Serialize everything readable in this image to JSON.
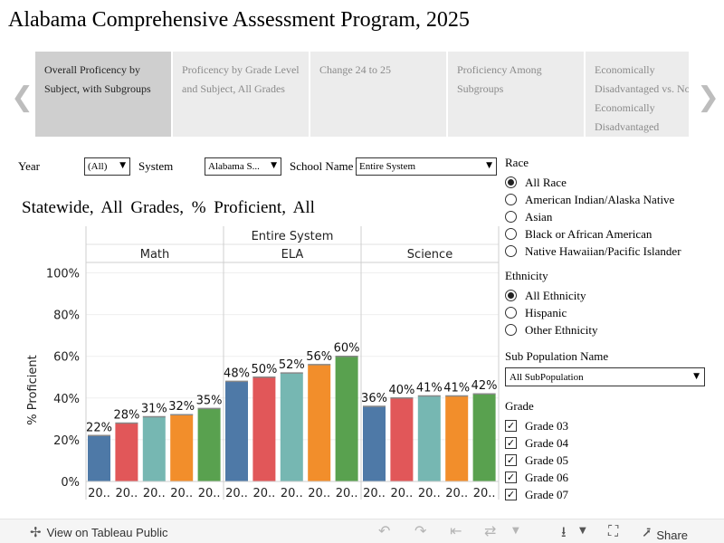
{
  "page_title": "Alabama Comprehensive Assessment Program, 2025",
  "story_tabs": [
    {
      "label": "Overall Proficency by Subject, with Subgroups",
      "active": true
    },
    {
      "label": "Proficency by Grade Level and Subject, All Grades",
      "active": false
    },
    {
      "label": "Change 24 to 25",
      "active": false
    },
    {
      "label": "Proficiency Among Subgroups",
      "active": false
    },
    {
      "label": "Economically Disadvantaged vs. Not Economically Disadvantaged",
      "active": false
    }
  ],
  "filters": {
    "year_label": "Year",
    "year_value": "(All)",
    "system_label": "System",
    "system_value": "Alabama S...",
    "school_label": "School Name",
    "school_value": "Entire System"
  },
  "chart_title": "Statewide,  All Grades,  % Proficient, All",
  "chart_data": {
    "type": "bar",
    "column_header": "Entire System",
    "panels": [
      "Math",
      "ELA",
      "Science"
    ],
    "categories": [
      "20..",
      "20..",
      "20..",
      "20..",
      "20.."
    ],
    "series_colors": [
      "#4e79a7",
      "#e15759",
      "#76b7b2",
      "#f28e2b",
      "#59a14f"
    ],
    "values": {
      "Math": [
        22,
        28,
        31,
        32,
        35
      ],
      "ELA": [
        48,
        50,
        52,
        56,
        60
      ],
      "Science": [
        36,
        40,
        41,
        41,
        42
      ]
    },
    "data_labels": {
      "Math": [
        "22%",
        "28%",
        "31%",
        "32%",
        "35%"
      ],
      "ELA": [
        "48%",
        "50%",
        "52%",
        "56%",
        "60%"
      ],
      "Science": [
        "36%",
        "40%",
        "41%",
        "41%",
        "42%"
      ]
    },
    "ylabel": "% Proficient",
    "yticks": [
      0,
      20,
      40,
      60,
      80,
      100
    ],
    "ytick_labels": [
      "0%",
      "20%",
      "40%",
      "60%",
      "80%",
      "100%"
    ],
    "ylim": [
      0,
      105
    ]
  },
  "race": {
    "title": "Race",
    "options": [
      {
        "label": "All Race",
        "selected": true
      },
      {
        "label": "American Indian/Alaska Native",
        "selected": false
      },
      {
        "label": "Asian",
        "selected": false
      },
      {
        "label": "Black or African American",
        "selected": false
      },
      {
        "label": "Native Hawaiian/Pacific Islander",
        "selected": false
      }
    ]
  },
  "ethnicity": {
    "title": "Ethnicity",
    "options": [
      {
        "label": "All Ethnicity",
        "selected": true
      },
      {
        "label": "Hispanic",
        "selected": false
      },
      {
        "label": "Other Ethnicity",
        "selected": false
      }
    ]
  },
  "subpop": {
    "title": "Sub Population Name",
    "value": "All SubPopulation"
  },
  "grade": {
    "title": "Grade",
    "options": [
      {
        "label": "Grade 03",
        "checked": true
      },
      {
        "label": "Grade 04",
        "checked": true
      },
      {
        "label": "Grade 05",
        "checked": true
      },
      {
        "label": "Grade 06",
        "checked": true
      },
      {
        "label": "Grade 07",
        "checked": true
      }
    ]
  },
  "footer": {
    "view_label": "View on Tableau Public",
    "share_label": "Share"
  }
}
